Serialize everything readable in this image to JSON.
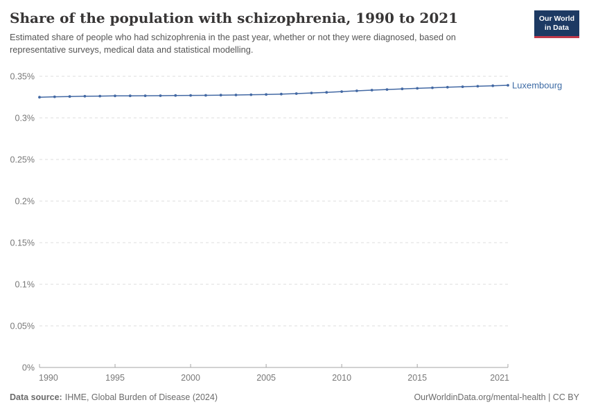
{
  "header": {
    "title": "Share of the population with schizophrenia, 1990 to 2021",
    "subtitle": "Estimated share of people who had schizophrenia in the past year, whether or not they were diagnosed, based on representative surveys, medical data and statistical modelling.",
    "logo_line1": "Our World",
    "logo_line2": "in Data"
  },
  "colors": {
    "series_line": "#4268a3",
    "series_label": "#3d6ba5",
    "gridline": "#dcdcdc",
    "axis": "#a5a5a5",
    "tick_label": "#787878",
    "logo_bg": "#1d3a63",
    "logo_red": "#c0394a"
  },
  "chart_data": {
    "type": "line",
    "title": "Share of the population with schizophrenia, 1990 to 2021",
    "xlabel": "",
    "ylabel": "",
    "xlim": [
      1990,
      2021
    ],
    "ylim": [
      0,
      0.35
    ],
    "grid": "horizontal-dashed",
    "legend_position": "line-end-label",
    "xticks": [
      1990,
      1995,
      2000,
      2005,
      2010,
      2015,
      2021
    ],
    "yticks": [
      {
        "label": "0%",
        "value": 0
      },
      {
        "label": "0.05%",
        "value": 0.05
      },
      {
        "label": "0.1%",
        "value": 0.1
      },
      {
        "label": "0.15%",
        "value": 0.15
      },
      {
        "label": "0.2%",
        "value": 0.2
      },
      {
        "label": "0.25%",
        "value": 0.25
      },
      {
        "label": "0.3%",
        "value": 0.3
      },
      {
        "label": "0.35%",
        "value": 0.35
      }
    ],
    "x": [
      1990,
      1991,
      1992,
      1993,
      1994,
      1995,
      1996,
      1997,
      1998,
      1999,
      2000,
      2001,
      2002,
      2003,
      2004,
      2005,
      2006,
      2007,
      2008,
      2009,
      2010,
      2011,
      2012,
      2013,
      2014,
      2015,
      2016,
      2017,
      2018,
      2019,
      2020,
      2021
    ],
    "series": [
      {
        "name": "Luxembourg",
        "unit": "%",
        "values": [
          0.3248,
          0.3253,
          0.3257,
          0.326,
          0.3262,
          0.3264,
          0.3265,
          0.3266,
          0.3267,
          0.3269,
          0.327,
          0.3271,
          0.3273,
          0.3275,
          0.3278,
          0.3281,
          0.3286,
          0.3292,
          0.3299,
          0.3307,
          0.3316,
          0.3325,
          0.3333,
          0.3341,
          0.3348,
          0.3355,
          0.3362,
          0.3368,
          0.3374,
          0.338,
          0.3386,
          0.3392
        ]
      }
    ]
  },
  "footer": {
    "datasource_label": "Data source:",
    "datasource_value": "IHME, Global Burden of Disease (2024)",
    "credit": "OurWorldinData.org/mental-health | CC BY"
  }
}
